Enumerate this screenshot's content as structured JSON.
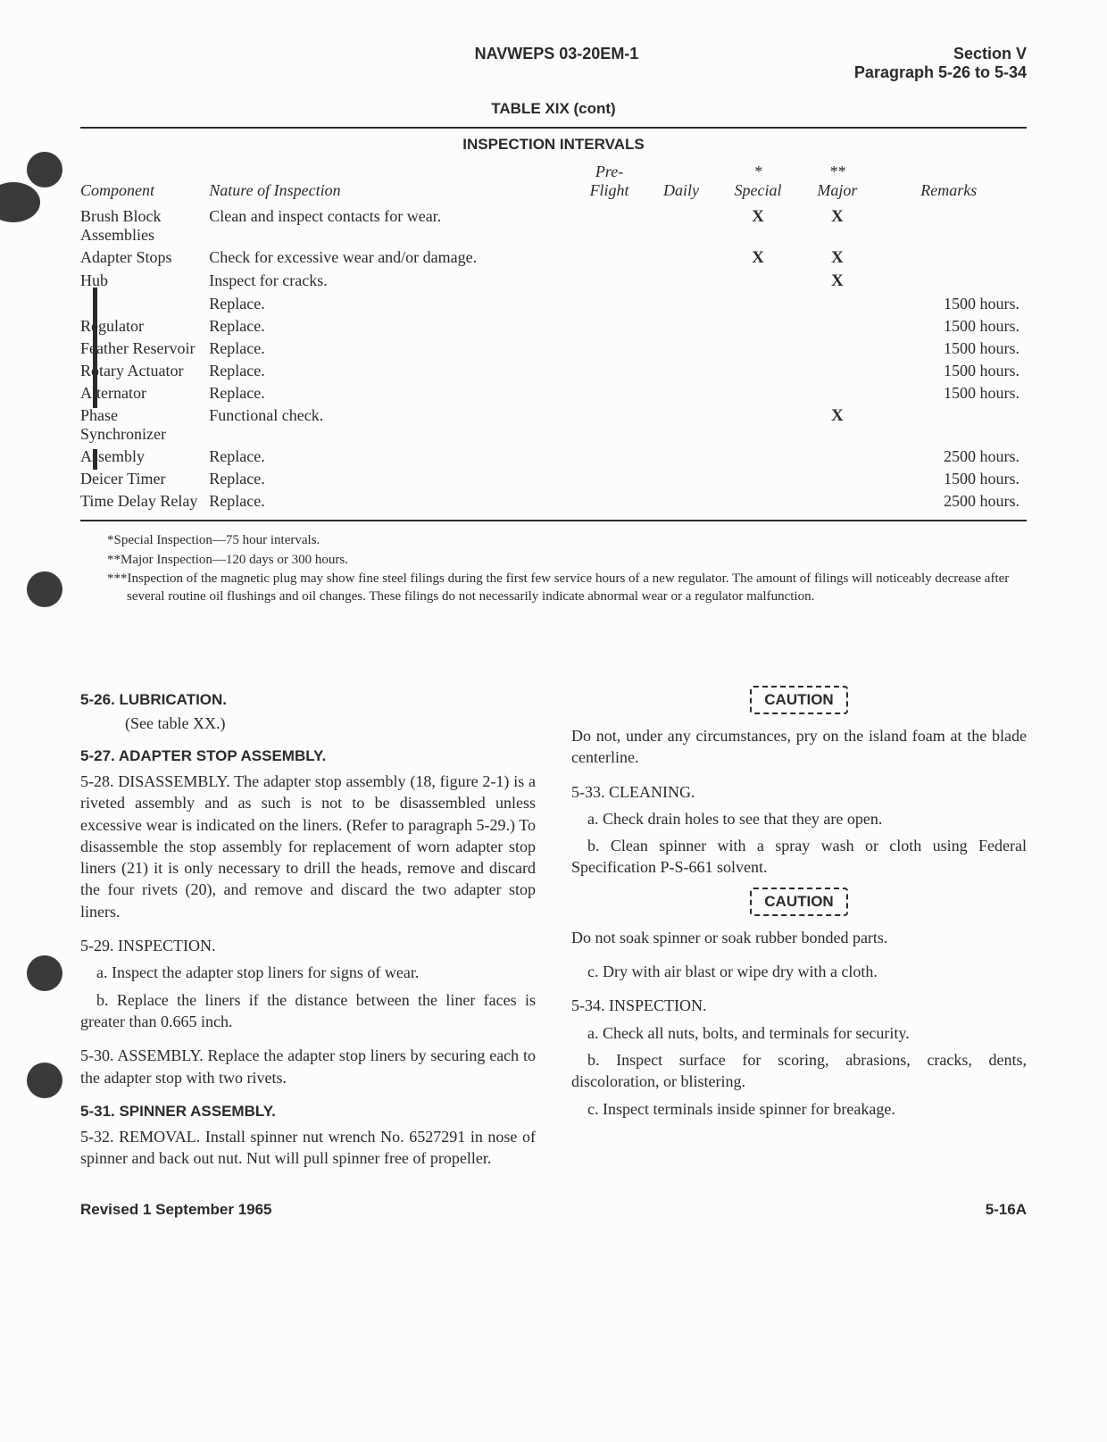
{
  "header": {
    "doc_id": "NAVWEPS 03-20EM-1",
    "section": "Section V",
    "paragraph_range": "Paragraph 5-26 to 5-34"
  },
  "table": {
    "title": "TABLE XIX (cont)",
    "subtitle": "INSPECTION INTERVALS",
    "headers": {
      "component": "Component",
      "nature": "Nature of Inspection",
      "preflight": "Pre-\nFlight",
      "daily": "Daily",
      "special": "*\nSpecial",
      "major": "**\nMajor",
      "remarks": "Remarks"
    },
    "rows": [
      {
        "component": "Brush Block Assemblies",
        "nature": "Clean and inspect contacts for wear.",
        "preflight": "",
        "daily": "",
        "special": "X",
        "major": "X",
        "remarks": ""
      },
      {
        "component": "Adapter Stops",
        "nature": "Check for excessive wear and/or damage.",
        "preflight": "",
        "daily": "",
        "special": "X",
        "major": "X",
        "remarks": ""
      },
      {
        "component": "Hub",
        "nature": "Inspect for cracks.",
        "preflight": "",
        "daily": "",
        "special": "",
        "major": "X",
        "remarks": ""
      },
      {
        "component": "",
        "nature": "Replace.",
        "preflight": "",
        "daily": "",
        "special": "",
        "major": "",
        "remarks": "1500 hours."
      },
      {
        "component": "Regulator",
        "nature": "Replace.",
        "preflight": "",
        "daily": "",
        "special": "",
        "major": "",
        "remarks": "1500 hours."
      },
      {
        "component": "Feather Reservoir",
        "nature": "Replace.",
        "preflight": "",
        "daily": "",
        "special": "",
        "major": "",
        "remarks": "1500 hours."
      },
      {
        "component": "Rotary Actuator",
        "nature": "Replace.",
        "preflight": "",
        "daily": "",
        "special": "",
        "major": "",
        "remarks": "1500 hours."
      },
      {
        "component": "Alternator",
        "nature": "Replace.",
        "preflight": "",
        "daily": "",
        "special": "",
        "major": "",
        "remarks": "1500 hours."
      },
      {
        "component": "Phase Synchronizer",
        "nature": "Functional check.",
        "preflight": "",
        "daily": "",
        "special": "",
        "major": "X",
        "remarks": ""
      },
      {
        "component": "Assembly",
        "nature": "Replace.",
        "preflight": "",
        "daily": "",
        "special": "",
        "major": "",
        "remarks": "2500 hours."
      },
      {
        "component": "Deicer Timer",
        "nature": "Replace.",
        "preflight": "",
        "daily": "",
        "special": "",
        "major": "",
        "remarks": "1500 hours."
      },
      {
        "component": "Time Delay Relay",
        "nature": "Replace.",
        "preflight": "",
        "daily": "",
        "special": "",
        "major": "",
        "remarks": "2500 hours."
      }
    ]
  },
  "footnotes": {
    "f1": "*Special Inspection—75 hour intervals.",
    "f2": "**Major Inspection—120 days or 300 hours.",
    "f3": "***Inspection of the magnetic plug may show fine steel filings during the first few service hours of a new regulator. The amount of filings will noticeably decrease after several routine oil flushings and oil changes. These filings do not necessarily indicate abnormal wear or a regulator malfunction."
  },
  "body": {
    "s526": {
      "heading": "5-26. LUBRICATION.",
      "sub": "(See table XX.)"
    },
    "s527": {
      "heading": "5-27. ADAPTER STOP ASSEMBLY.",
      "p528": "5-28. DISASSEMBLY. The adapter stop assembly (18, figure 2-1) is a riveted assembly and as such is not to be disassembled unless excessive wear is indicated on the liners. (Refer to paragraph 5-29.) To disassemble the stop assembly for replacement of worn adapter stop liners (21) it is only necessary to drill the heads, remove and discard the four rivets (20), and remove and discard the two adapter stop liners.",
      "p529": "5-29. INSPECTION.",
      "p529a": "a. Inspect the adapter stop liners for signs of wear.",
      "p529b": "b. Replace the liners if the distance between the liner faces is greater than 0.665 inch.",
      "p530": "5-30. ASSEMBLY. Replace the adapter stop liners by securing each to the adapter stop with two rivets."
    },
    "s531": {
      "heading": "5-31. SPINNER ASSEMBLY.",
      "p532": "5-32. REMOVAL. Install spinner nut wrench No. 6527291 in nose of spinner and back out nut. Nut will pull spinner free of propeller."
    },
    "caution_label": "CAUTION",
    "caution1": "Do not, under any circumstances, pry on the island foam at the blade centerline.",
    "p533": "5-33. CLEANING.",
    "p533a": "a. Check drain holes to see that they are open.",
    "p533b": "b. Clean spinner with a spray wash or cloth using Federal Specification P-S-661 solvent.",
    "caution2": "Do not soak spinner or soak rubber bonded parts.",
    "p533c": "c. Dry with air blast or wipe dry with a cloth.",
    "p534": "5-34. INSPECTION.",
    "p534a": "a. Check all nuts, bolts, and terminals for security.",
    "p534b": "b. Inspect surface for scoring, abrasions, cracks, dents, discoloration, or blistering.",
    "p534c": "c. Inspect terminals inside spinner for breakage."
  },
  "footer": {
    "revised": "Revised 1 September 1965",
    "page": "5-16A"
  }
}
